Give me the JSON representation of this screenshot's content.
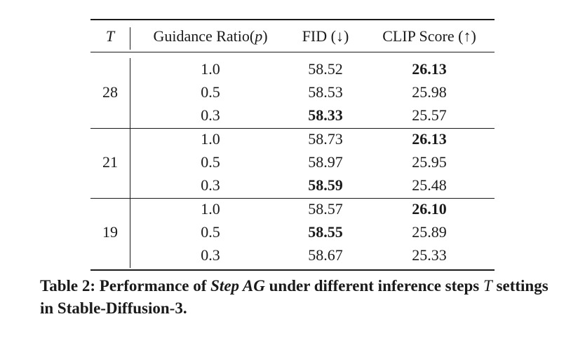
{
  "table": {
    "headers": {
      "t": "T",
      "ratio_prefix": "Guidance Ratio(",
      "ratio_var": "p",
      "ratio_suffix": ")",
      "fid": "FID (↓)",
      "clip": "CLIP Score (↑)"
    },
    "groups": [
      {
        "t": "28",
        "rows": [
          {
            "ratio": "1.0",
            "fid": "58.52",
            "clip": "26.13",
            "fid_bold": false,
            "clip_bold": true
          },
          {
            "ratio": "0.5",
            "fid": "58.53",
            "clip": "25.98",
            "fid_bold": false,
            "clip_bold": false
          },
          {
            "ratio": "0.3",
            "fid": "58.33",
            "clip": "25.57",
            "fid_bold": true,
            "clip_bold": false
          }
        ]
      },
      {
        "t": "21",
        "rows": [
          {
            "ratio": "1.0",
            "fid": "58.73",
            "clip": "26.13",
            "fid_bold": false,
            "clip_bold": true
          },
          {
            "ratio": "0.5",
            "fid": "58.97",
            "clip": "25.95",
            "fid_bold": false,
            "clip_bold": false
          },
          {
            "ratio": "0.3",
            "fid": "58.59",
            "clip": "25.48",
            "fid_bold": true,
            "clip_bold": false
          }
        ]
      },
      {
        "t": "19",
        "rows": [
          {
            "ratio": "1.0",
            "fid": "58.57",
            "clip": "26.10",
            "fid_bold": false,
            "clip_bold": true
          },
          {
            "ratio": "0.5",
            "fid": "58.55",
            "clip": "25.89",
            "fid_bold": true,
            "clip_bold": false
          },
          {
            "ratio": "0.3",
            "fid": "58.67",
            "clip": "25.33",
            "fid_bold": false,
            "clip_bold": false
          }
        ]
      }
    ]
  },
  "caption": {
    "label": "Table 2: Performance of ",
    "method": "Step AG",
    "mid": " under different inference steps ",
    "var": "T",
    "end": " settings in Stable-Diffusion-3."
  }
}
